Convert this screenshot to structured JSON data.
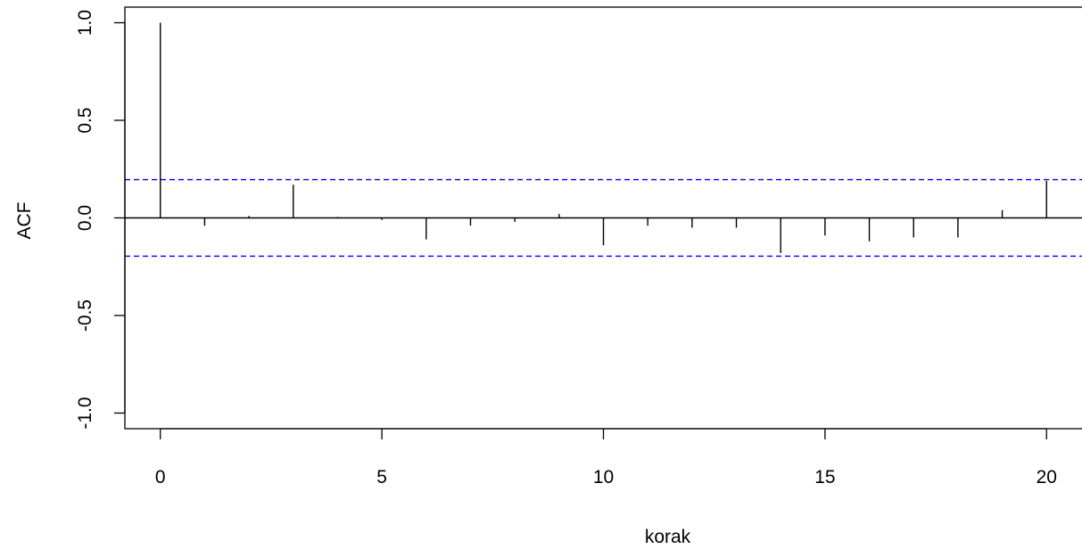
{
  "chart_data": {
    "type": "bar",
    "title": "",
    "xlabel": "korak",
    "ylabel": "ACF",
    "xlim": [
      -0.8,
      20.8
    ],
    "ylim": [
      -1.08,
      1.08
    ],
    "x": [
      0,
      1,
      2,
      3,
      4,
      5,
      6,
      7,
      8,
      9,
      10,
      11,
      12,
      13,
      14,
      15,
      16,
      17,
      18,
      19,
      20
    ],
    "values": [
      1.0,
      -0.04,
      0.01,
      0.17,
      0.005,
      -0.01,
      -0.11,
      -0.04,
      -0.02,
      0.02,
      -0.14,
      -0.04,
      -0.05,
      -0.05,
      -0.18,
      -0.09,
      -0.12,
      -0.1,
      -0.1,
      0.04,
      0.19
    ],
    "x_ticks": [
      0,
      5,
      10,
      15,
      20
    ],
    "x_tick_labels": [
      "0",
      "5",
      "10",
      "15",
      "20"
    ],
    "y_ticks": [
      -1.0,
      -0.5,
      0.0,
      0.5,
      1.0
    ],
    "y_tick_labels": [
      "-1.0",
      "-0.5",
      "0.0",
      "0.5",
      "1.0"
    ],
    "confidence_bounds": [
      0.196,
      -0.196
    ],
    "colors": {
      "bars": "#000000",
      "confidence_lines": "#0000ff",
      "axes": "#000000"
    },
    "grid": false,
    "legend": "none"
  }
}
